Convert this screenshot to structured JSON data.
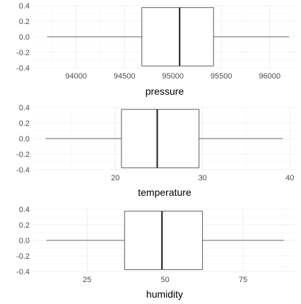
{
  "chart_data": [
    {
      "type": "boxplot",
      "xlabel": "pressure",
      "x_ticks": [
        94000,
        94500,
        95000,
        95500,
        96000
      ],
      "xlim": [
        93550,
        96280
      ],
      "y_ticks": [
        "0.4",
        "0.2",
        "0.0",
        "-0.2",
        "-0.4"
      ],
      "ylim": [
        -0.4,
        0.4
      ],
      "whisker_low": 93700,
      "q1": 94680,
      "median": 95070,
      "q3": 95420,
      "whisker_high": 96200
    },
    {
      "type": "boxplot",
      "xlabel": "temperature",
      "x_ticks": [
        20,
        30,
        40
      ],
      "xlim": [
        10.5,
        40.8
      ],
      "y_ticks": [
        "0.4",
        "0.2",
        "0.0",
        "-0.2",
        "-0.4"
      ],
      "ylim": [
        -0.4,
        0.4
      ],
      "whisker_low": 12,
      "q1": 20.7,
      "median": 24.8,
      "q3": 29.6,
      "whisker_high": 39.2
    },
    {
      "type": "boxplot",
      "xlabel": "humidity",
      "x_ticks": [
        25,
        50,
        75
      ],
      "xlim": [
        7.5,
        92.2
      ],
      "y_ticks": [
        "0.4",
        "0.2",
        "0.0",
        "-0.2",
        "-0.4"
      ],
      "ylim": [
        -0.4,
        0.4
      ],
      "whisker_low": 12,
      "q1": 37,
      "median": 49,
      "q3": 62,
      "whisker_high": 88
    }
  ]
}
